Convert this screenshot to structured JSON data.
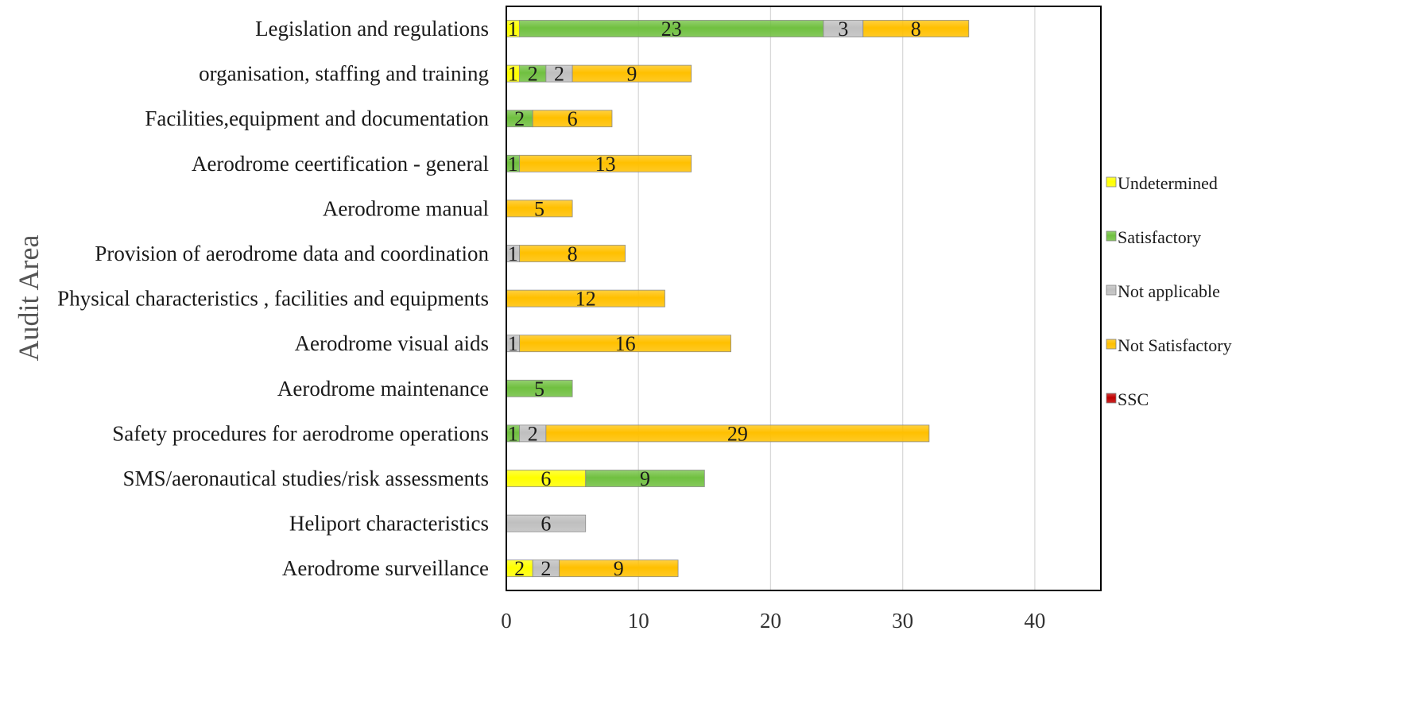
{
  "chart_data": {
    "type": "bar",
    "orientation": "horizontal",
    "stacked": true,
    "title": "",
    "xlabel": "",
    "ylabel": "Audit Area",
    "xlim": [
      0,
      45
    ],
    "xticks": [
      0,
      10,
      20,
      30,
      40
    ],
    "grid": "vertical",
    "legend_position": "right",
    "categories": [
      "Legislation and regulations",
      "organisation, staffing and training",
      "Facilities,equipment and documentation",
      "Aerodrome ceertification - general ",
      "Aerodrome manual",
      "Provision of aerodrome data and coordination",
      "Physical characteristics , facilities and equipments",
      "Aerodrome visual aids",
      "Aerodrome maintenance ",
      "Safety procedures for aerodrome operations",
      "SMS/aeronautical studies/risk assessments",
      "Heliport characteristics",
      "Aerodrome surveillance"
    ],
    "series": [
      {
        "name": "Undetermined",
        "color": "#ffff00",
        "values": [
          1,
          1,
          0,
          0,
          0,
          0,
          0,
          0,
          0,
          0,
          6,
          0,
          2
        ]
      },
      {
        "name": "Satisfactory",
        "color": "#70c040",
        "values": [
          23,
          2,
          2,
          1,
          0,
          0,
          0,
          0,
          5,
          1,
          9,
          0,
          0
        ]
      },
      {
        "name": "Not applicable",
        "color": "#bfbfbf",
        "values": [
          3,
          2,
          0,
          0,
          0,
          1,
          0,
          1,
          0,
          2,
          0,
          6,
          2
        ]
      },
      {
        "name": "Not Satisfactory",
        "color": "#ffc000",
        "values": [
          8,
          9,
          6,
          13,
          5,
          8,
          12,
          16,
          0,
          29,
          0,
          0,
          9
        ]
      },
      {
        "name": "SSC",
        "color": "#c00000",
        "values": [
          0,
          0,
          0,
          0,
          0,
          0,
          0,
          0,
          0,
          0,
          0,
          0,
          0
        ]
      }
    ]
  }
}
